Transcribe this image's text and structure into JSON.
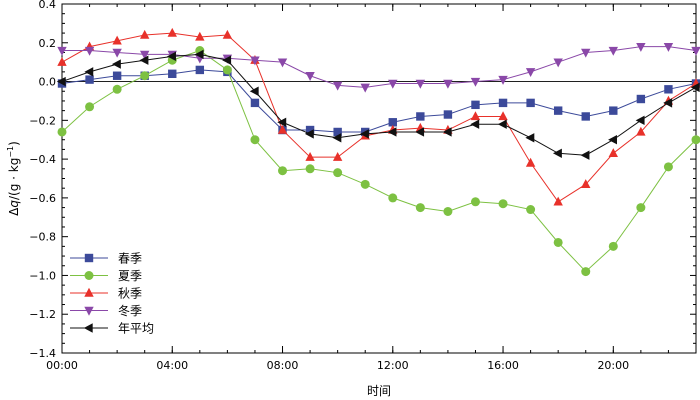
{
  "chart_data": {
    "type": "line",
    "title": "",
    "xlabel": "时间",
    "ylabel_parts": [
      "Δ",
      "q",
      "/(g · kg",
      "−1",
      ")"
    ],
    "x": [
      0,
      1,
      2,
      3,
      4,
      5,
      6,
      7,
      8,
      9,
      10,
      11,
      12,
      13,
      14,
      15,
      16,
      17,
      18,
      19,
      20,
      21,
      22,
      23
    ],
    "xlim": [
      0,
      23
    ],
    "ylim": [
      -1.4,
      0.4
    ],
    "x_ticks": [
      {
        "value": 0,
        "label": "00:00"
      },
      {
        "value": 4,
        "label": "04:00"
      },
      {
        "value": 8,
        "label": "08:00"
      },
      {
        "value": 12,
        "label": "12:00"
      },
      {
        "value": 16,
        "label": "16:00"
      },
      {
        "value": 20,
        "label": "20:00"
      }
    ],
    "y_ticks": [
      {
        "value": 0.4,
        "label": "0.4"
      },
      {
        "value": 0.2,
        "label": "0.2"
      },
      {
        "value": 0.0,
        "label": "0.0"
      },
      {
        "value": -0.2,
        "label": "−0.2"
      },
      {
        "value": -0.4,
        "label": "−0.4"
      },
      {
        "value": -0.6,
        "label": "−0.6"
      },
      {
        "value": -0.8,
        "label": "−0.8"
      },
      {
        "value": -1.0,
        "label": "−1.0"
      },
      {
        "value": -1.2,
        "label": "−1.2"
      },
      {
        "value": -1.4,
        "label": "−1.4"
      }
    ],
    "zero_line": true,
    "legend_position": "bottom-left",
    "series": [
      {
        "name": "春季",
        "color": "#3c4a9a",
        "marker": "square",
        "values": [
          -0.01,
          0.01,
          0.03,
          0.03,
          0.04,
          0.06,
          0.05,
          -0.11,
          -0.25,
          -0.25,
          -0.26,
          -0.26,
          -0.21,
          -0.18,
          -0.17,
          -0.12,
          -0.11,
          -0.11,
          -0.15,
          -0.18,
          -0.15,
          -0.09,
          -0.04,
          -0.01
        ]
      },
      {
        "name": "夏季",
        "color": "#7dc142",
        "marker": "circle",
        "values": [
          -0.26,
          -0.13,
          -0.04,
          0.03,
          0.11,
          0.16,
          0.06,
          -0.3,
          -0.46,
          -0.45,
          -0.47,
          -0.53,
          -0.6,
          -0.65,
          -0.67,
          -0.62,
          -0.63,
          -0.66,
          -0.83,
          -0.98,
          -0.85,
          -0.65,
          -0.44,
          -0.3
        ]
      },
      {
        "name": "秋季",
        "color": "#e8312a",
        "marker": "triangle-up",
        "values": [
          0.1,
          0.18,
          0.21,
          0.24,
          0.25,
          0.23,
          0.24,
          0.11,
          -0.25,
          -0.39,
          -0.39,
          -0.28,
          -0.25,
          -0.24,
          -0.25,
          -0.18,
          -0.18,
          -0.42,
          -0.62,
          -0.53,
          -0.37,
          -0.26,
          -0.1,
          -0.01
        ]
      },
      {
        "name": "冬季",
        "color": "#8a48a8",
        "marker": "triangle-down",
        "values": [
          0.16,
          0.16,
          0.15,
          0.14,
          0.14,
          0.12,
          0.12,
          0.11,
          0.1,
          0.03,
          -0.02,
          -0.03,
          -0.01,
          -0.01,
          -0.01,
          0.0,
          0.01,
          0.05,
          0.1,
          0.15,
          0.16,
          0.18,
          0.18,
          0.16
        ]
      },
      {
        "name": "年平均",
        "color": "#111111",
        "marker": "triangle-left",
        "values": [
          0.0,
          0.05,
          0.09,
          0.11,
          0.13,
          0.14,
          0.11,
          -0.05,
          -0.21,
          -0.27,
          -0.29,
          -0.27,
          -0.26,
          -0.26,
          -0.26,
          -0.22,
          -0.22,
          -0.29,
          -0.37,
          -0.38,
          -0.3,
          -0.2,
          -0.11,
          -0.03
        ]
      }
    ]
  }
}
